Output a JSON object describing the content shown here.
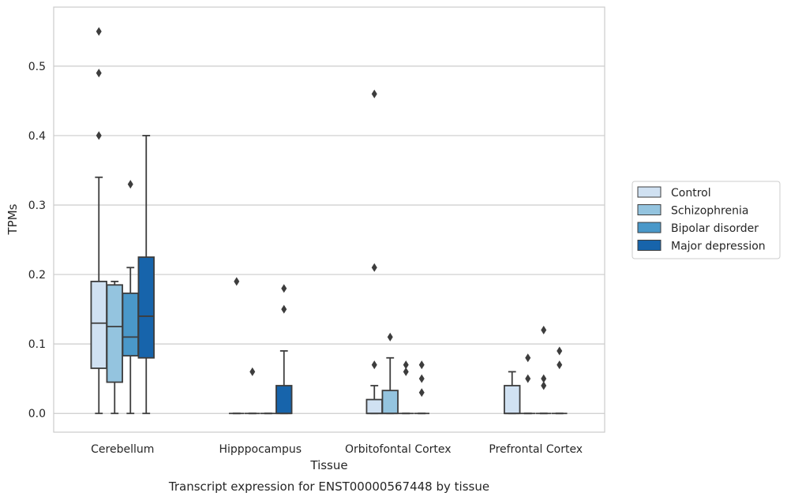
{
  "chart_data": {
    "type": "box",
    "caption": "Transcript expression for ENST00000567448 by tissue",
    "xlabel": "Tissue",
    "ylabel": "TPMs",
    "ylim": [
      -0.027,
      0.585
    ],
    "yticks": [
      0.0,
      0.1,
      0.2,
      0.3,
      0.4,
      0.5
    ],
    "ytick_labels": [
      "0.0",
      "0.1",
      "0.2",
      "0.3",
      "0.4",
      "0.5"
    ],
    "grid": true,
    "legend_position": "right",
    "categories": [
      "Cerebellum",
      "Hipppocampus",
      "Orbitofontal Cortex",
      "Prefrontal Cortex"
    ],
    "series": [
      {
        "name": "Control",
        "color": "#d0e1f2",
        "boxes": [
          {
            "q1": 0.065,
            "median": 0.13,
            "q3": 0.19,
            "whisker_low": 0.0,
            "whisker_high": 0.34,
            "outliers": [
              0.55,
              0.49,
              0.4
            ]
          },
          {
            "q1": 0.0,
            "median": 0.0,
            "q3": 0.0,
            "whisker_low": 0.0,
            "whisker_high": 0.0,
            "outliers": [
              0.19
            ]
          },
          {
            "q1": 0.0,
            "median": 0.0,
            "q3": 0.02,
            "whisker_low": 0.0,
            "whisker_high": 0.04,
            "outliers": [
              0.46,
              0.21,
              0.07
            ]
          },
          {
            "q1": 0.0,
            "median": 0.0,
            "q3": 0.04,
            "whisker_low": 0.0,
            "whisker_high": 0.06,
            "outliers": []
          }
        ]
      },
      {
        "name": "Schizophrenia",
        "color": "#94c4df",
        "boxes": [
          {
            "q1": 0.045,
            "median": 0.125,
            "q3": 0.185,
            "whisker_low": 0.0,
            "whisker_high": 0.19,
            "outliers": []
          },
          {
            "q1": 0.0,
            "median": 0.0,
            "q3": 0.0,
            "whisker_low": 0.0,
            "whisker_high": 0.0,
            "outliers": [
              0.06
            ]
          },
          {
            "q1": 0.0,
            "median": 0.0,
            "q3": 0.033,
            "whisker_low": 0.0,
            "whisker_high": 0.08,
            "outliers": [
              0.11
            ]
          },
          {
            "q1": 0.0,
            "median": 0.0,
            "q3": 0.0,
            "whisker_low": 0.0,
            "whisker_high": 0.0,
            "outliers": [
              0.08,
              0.05
            ]
          }
        ]
      },
      {
        "name": "Bipolar disorder",
        "color": "#4a98c9",
        "boxes": [
          {
            "q1": 0.083,
            "median": 0.11,
            "q3": 0.173,
            "whisker_low": 0.0,
            "whisker_high": 0.21,
            "outliers": [
              0.33
            ]
          },
          {
            "q1": 0.0,
            "median": 0.0,
            "q3": 0.0,
            "whisker_low": 0.0,
            "whisker_high": 0.0,
            "outliers": []
          },
          {
            "q1": 0.0,
            "median": 0.0,
            "q3": 0.0,
            "whisker_low": 0.0,
            "whisker_high": 0.0,
            "outliers": [
              0.07,
              0.06
            ]
          },
          {
            "q1": 0.0,
            "median": 0.0,
            "q3": 0.0,
            "whisker_low": 0.0,
            "whisker_high": 0.0,
            "outliers": [
              0.12,
              0.05,
              0.04
            ]
          }
        ]
      },
      {
        "name": "Major depression",
        "color": "#1764ab",
        "boxes": [
          {
            "q1": 0.08,
            "median": 0.14,
            "q3": 0.225,
            "whisker_low": 0.0,
            "whisker_high": 0.4,
            "outliers": []
          },
          {
            "q1": 0.0,
            "median": 0.0,
            "q3": 0.04,
            "whisker_low": 0.0,
            "whisker_high": 0.09,
            "outliers": [
              0.18,
              0.15
            ]
          },
          {
            "q1": 0.0,
            "median": 0.0,
            "q3": 0.0,
            "whisker_low": 0.0,
            "whisker_high": 0.0,
            "outliers": [
              0.07,
              0.05,
              0.03
            ]
          },
          {
            "q1": 0.0,
            "median": 0.0,
            "q3": 0.0,
            "whisker_low": 0.0,
            "whisker_high": 0.0,
            "outliers": [
              0.09,
              0.07
            ]
          }
        ]
      }
    ]
  }
}
